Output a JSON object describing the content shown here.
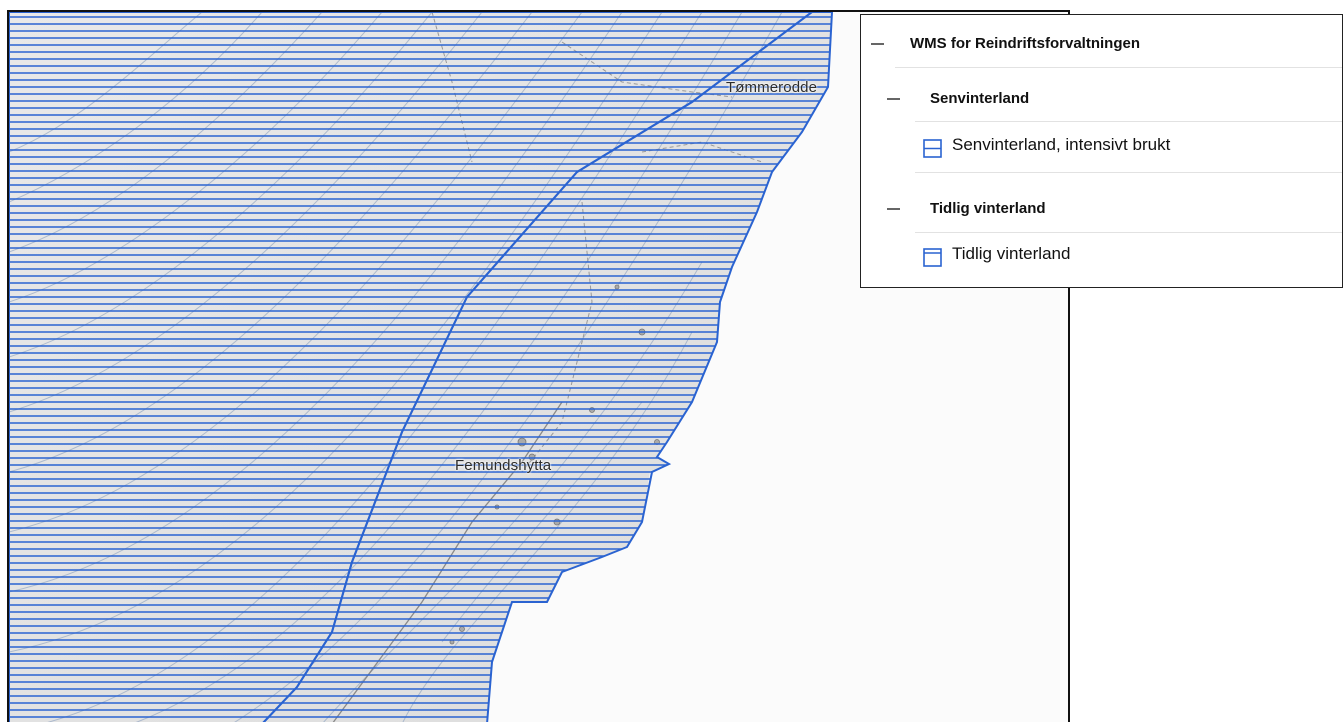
{
  "map": {
    "places": [
      {
        "name": "Tømmerodde"
      },
      {
        "name": "Femundshytta"
      }
    ],
    "colors": {
      "hatch": "#2a63d1",
      "contour": "#9fb0c8",
      "terrain": "#e6e6e6",
      "background": "#fbfbfb"
    }
  },
  "legend": {
    "root": {
      "label": "WMS for Reindriftsforvaltningen",
      "icon": "collapse-minus-icon"
    },
    "groups": [
      {
        "label": "Senvinterland",
        "icon": "collapse-minus-icon",
        "items": [
          {
            "label": "Senvinterland, intensivt brukt",
            "icon": "hatched-polygon-swatch-icon",
            "color": "#2a63d1"
          }
        ]
      },
      {
        "label": "Tidlig vinterland",
        "icon": "collapse-minus-icon",
        "items": [
          {
            "label": "Tidlig vinterland",
            "icon": "outlined-polygon-swatch-icon",
            "color": "#2a63d1"
          }
        ]
      }
    ]
  }
}
